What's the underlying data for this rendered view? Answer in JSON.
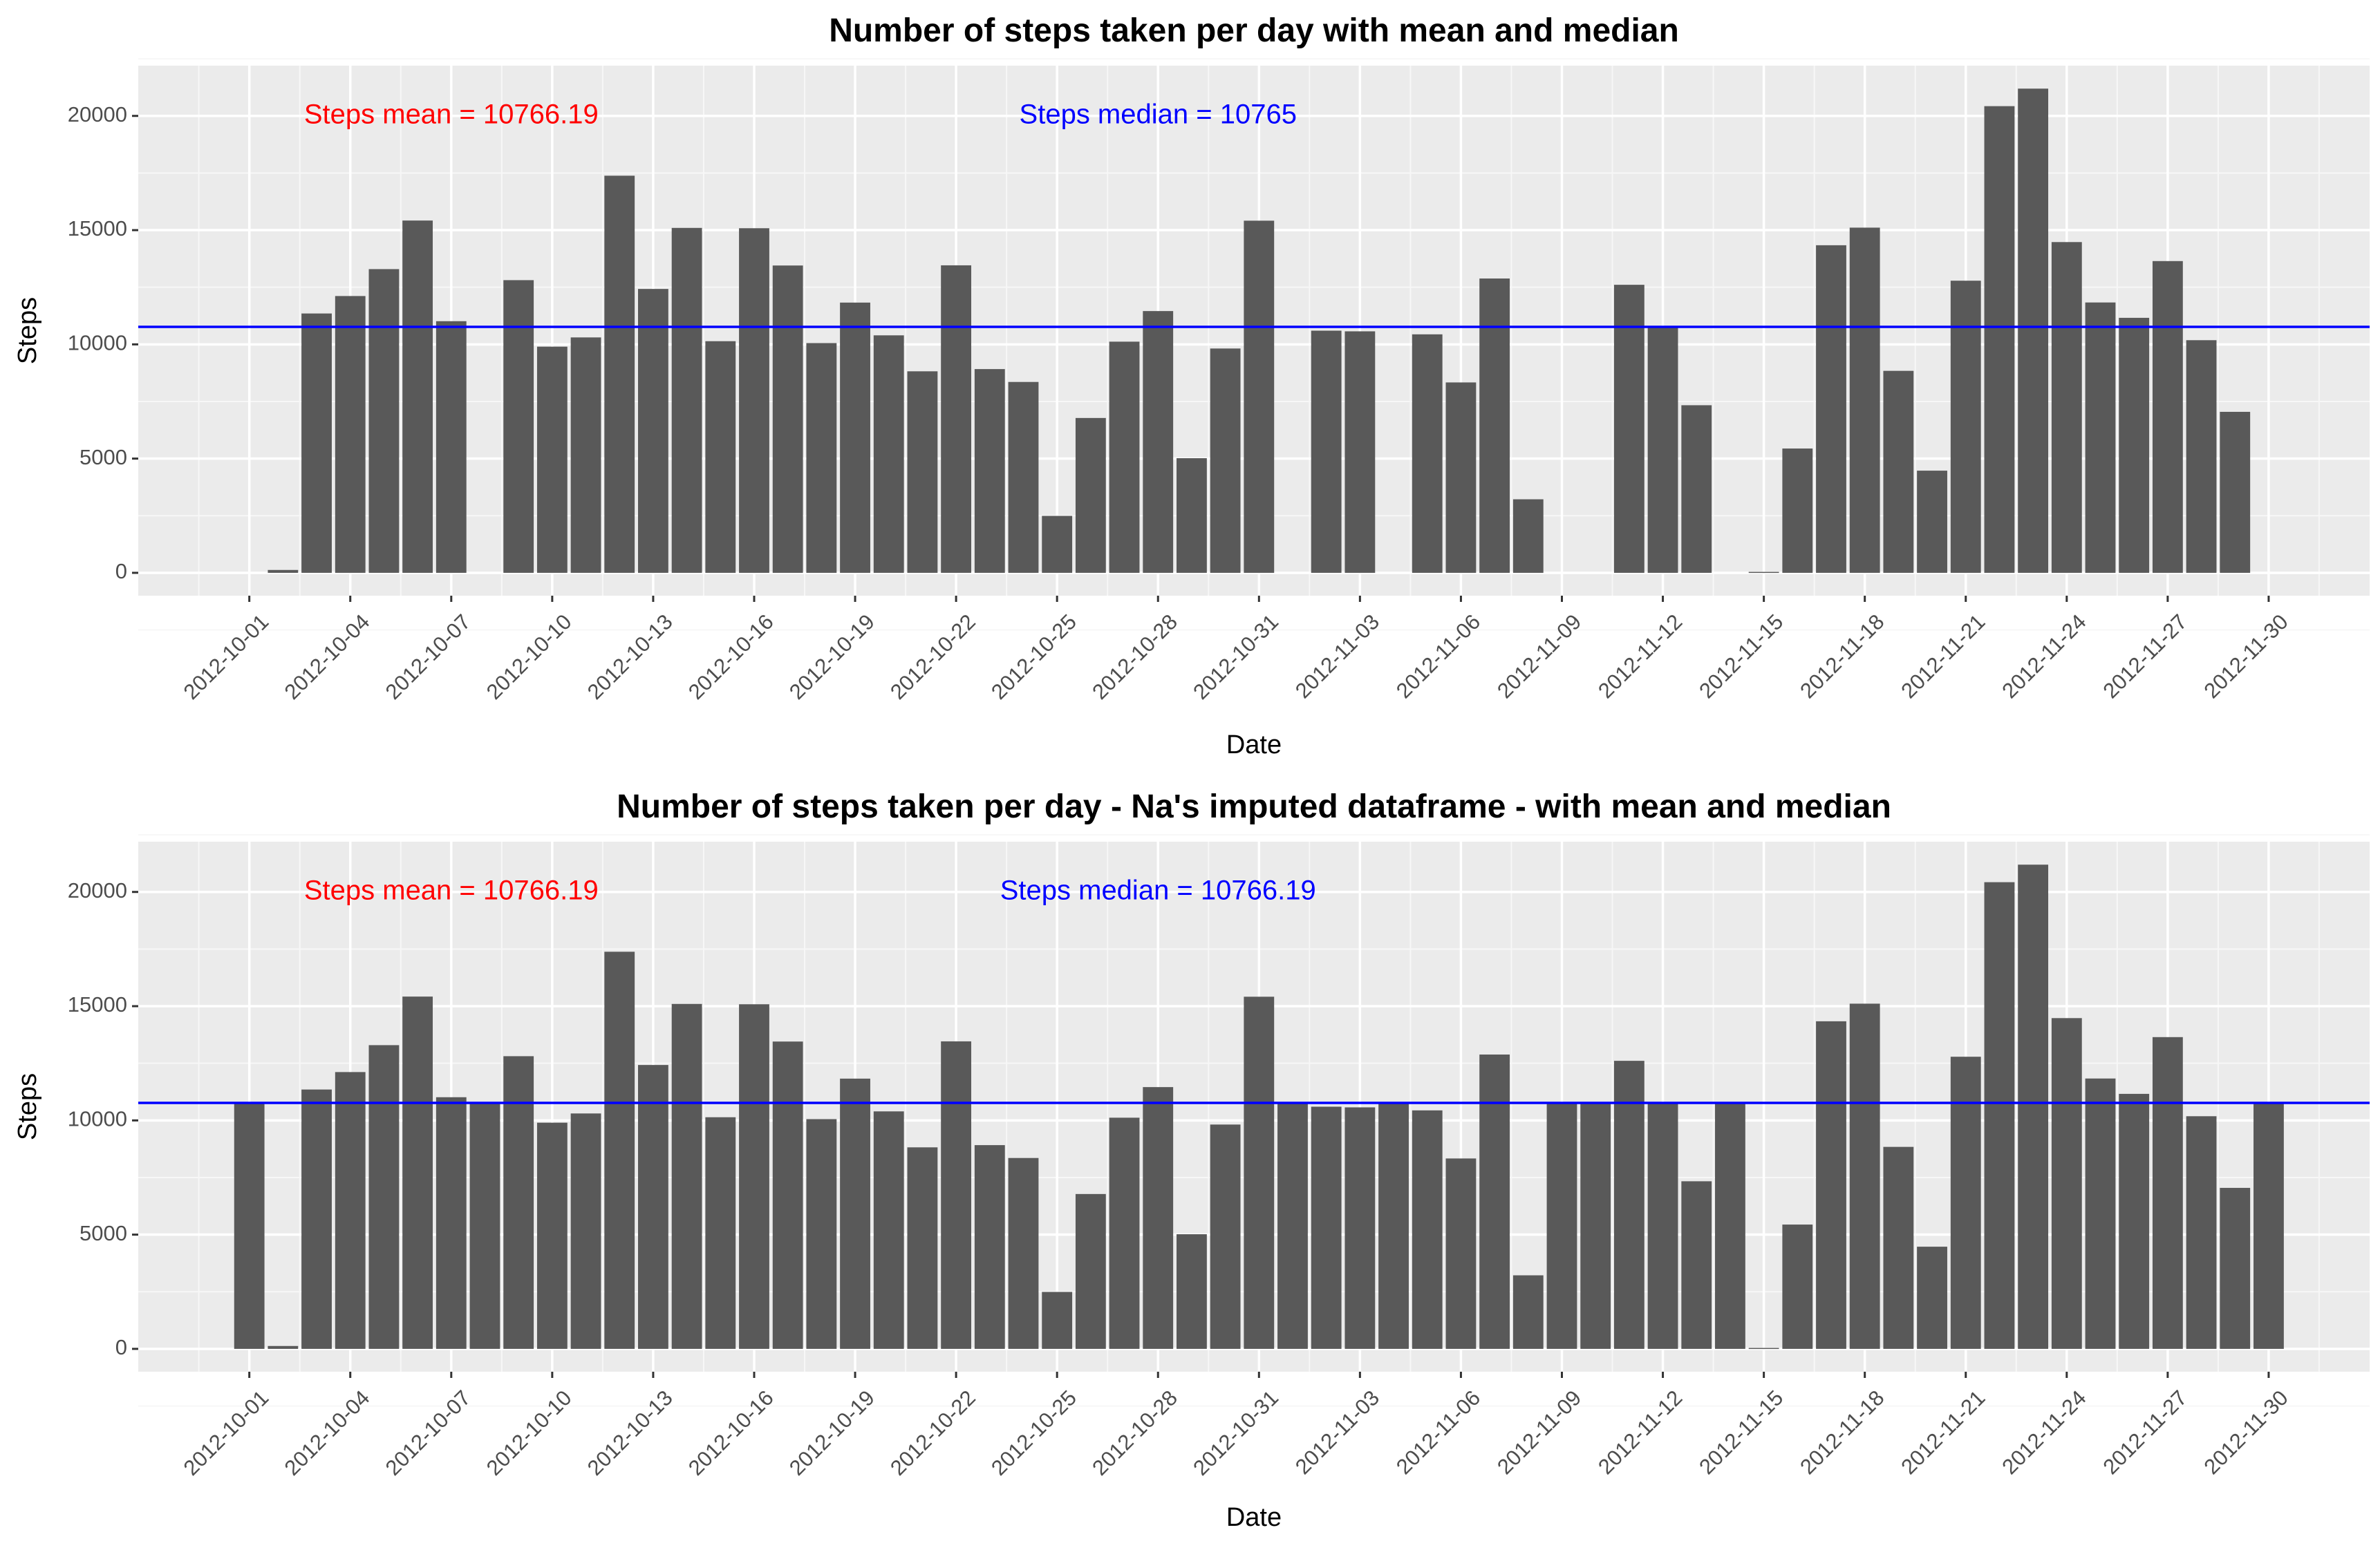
{
  "chart_data": [
    {
      "type": "bar",
      "title": "Number of steps taken per day with mean and median",
      "xlabel": "Date",
      "ylabel": "Steps",
      "x": [
        "2012-10-01",
        "2012-10-02",
        "2012-10-03",
        "2012-10-04",
        "2012-10-05",
        "2012-10-06",
        "2012-10-07",
        "2012-10-08",
        "2012-10-09",
        "2012-10-10",
        "2012-10-11",
        "2012-10-12",
        "2012-10-13",
        "2012-10-14",
        "2012-10-15",
        "2012-10-16",
        "2012-10-17",
        "2012-10-18",
        "2012-10-19",
        "2012-10-20",
        "2012-10-21",
        "2012-10-22",
        "2012-10-23",
        "2012-10-24",
        "2012-10-25",
        "2012-10-26",
        "2012-10-27",
        "2012-10-28",
        "2012-10-29",
        "2012-10-30",
        "2012-10-31",
        "2012-11-01",
        "2012-11-02",
        "2012-11-03",
        "2012-11-04",
        "2012-11-05",
        "2012-11-06",
        "2012-11-07",
        "2012-11-08",
        "2012-11-09",
        "2012-11-10",
        "2012-11-11",
        "2012-11-12",
        "2012-11-13",
        "2012-11-14",
        "2012-11-15",
        "2012-11-16",
        "2012-11-17",
        "2012-11-18",
        "2012-11-19",
        "2012-11-20",
        "2012-11-21",
        "2012-11-22",
        "2012-11-23",
        "2012-11-24",
        "2012-11-25",
        "2012-11-26",
        "2012-11-27",
        "2012-11-28",
        "2012-11-29",
        "2012-11-30"
      ],
      "values": [
        null,
        126,
        11352,
        12116,
        13294,
        15420,
        11015,
        null,
        12811,
        9900,
        10304,
        17382,
        12426,
        15098,
        10139,
        15084,
        13452,
        10056,
        11829,
        10395,
        8821,
        13460,
        8918,
        8355,
        2492,
        6778,
        10119,
        11458,
        5018,
        9819,
        15414,
        null,
        10600,
        10571,
        null,
        10439,
        8334,
        12883,
        3219,
        null,
        null,
        12608,
        10765,
        7336,
        null,
        41,
        5441,
        14339,
        15110,
        8841,
        4472,
        12787,
        20427,
        21194,
        14478,
        11834,
        11162,
        13646,
        10183,
        7047,
        null
      ],
      "xticks": [
        "2012-10-01",
        "2012-10-04",
        "2012-10-07",
        "2012-10-10",
        "2012-10-13",
        "2012-10-16",
        "2012-10-19",
        "2012-10-22",
        "2012-10-25",
        "2012-10-28",
        "2012-10-31",
        "2012-11-03",
        "2012-11-06",
        "2012-11-09",
        "2012-11-12",
        "2012-11-15",
        "2012-11-18",
        "2012-11-21",
        "2012-11-24",
        "2012-11-27",
        "2012-11-30"
      ],
      "yticks": [
        0,
        5000,
        10000,
        15000,
        20000
      ],
      "ylim": [
        -1000,
        22200
      ],
      "hline": 10766.19,
      "hline_color": "#0000ff",
      "bar_color": "#595959",
      "annotations": [
        {
          "text": "Steps mean = 10766.19",
          "color": "#ff0000",
          "x": "2012-10-07",
          "y": 20000
        },
        {
          "text": "Steps median = 10765",
          "color": "#0000ff",
          "x": "2012-10-28",
          "y": 20000
        }
      ],
      "grid": true
    },
    {
      "type": "bar",
      "title": "Number of steps taken per day - Na's imputed dataframe - with mean and median",
      "xlabel": "Date",
      "ylabel": "Steps",
      "x": [
        "2012-10-01",
        "2012-10-02",
        "2012-10-03",
        "2012-10-04",
        "2012-10-05",
        "2012-10-06",
        "2012-10-07",
        "2012-10-08",
        "2012-10-09",
        "2012-10-10",
        "2012-10-11",
        "2012-10-12",
        "2012-10-13",
        "2012-10-14",
        "2012-10-15",
        "2012-10-16",
        "2012-10-17",
        "2012-10-18",
        "2012-10-19",
        "2012-10-20",
        "2012-10-21",
        "2012-10-22",
        "2012-10-23",
        "2012-10-24",
        "2012-10-25",
        "2012-10-26",
        "2012-10-27",
        "2012-10-28",
        "2012-10-29",
        "2012-10-30",
        "2012-10-31",
        "2012-11-01",
        "2012-11-02",
        "2012-11-03",
        "2012-11-04",
        "2012-11-05",
        "2012-11-06",
        "2012-11-07",
        "2012-11-08",
        "2012-11-09",
        "2012-11-10",
        "2012-11-11",
        "2012-11-12",
        "2012-11-13",
        "2012-11-14",
        "2012-11-15",
        "2012-11-16",
        "2012-11-17",
        "2012-11-18",
        "2012-11-19",
        "2012-11-20",
        "2012-11-21",
        "2012-11-22",
        "2012-11-23",
        "2012-11-24",
        "2012-11-25",
        "2012-11-26",
        "2012-11-27",
        "2012-11-28",
        "2012-11-29",
        "2012-11-30"
      ],
      "values": [
        10766.19,
        126,
        11352,
        12116,
        13294,
        15420,
        11015,
        10766.19,
        12811,
        9900,
        10304,
        17382,
        12426,
        15098,
        10139,
        15084,
        13452,
        10056,
        11829,
        10395,
        8821,
        13460,
        8918,
        8355,
        2492,
        6778,
        10119,
        11458,
        5018,
        9819,
        15414,
        10766.19,
        10600,
        10571,
        10766.19,
        10439,
        8334,
        12883,
        3219,
        10766.19,
        10766.19,
        12608,
        10765,
        7336,
        10766.19,
        41,
        5441,
        14339,
        15110,
        8841,
        4472,
        12787,
        20427,
        21194,
        14478,
        11834,
        11162,
        13646,
        10183,
        7047,
        10766.19
      ],
      "xticks": [
        "2012-10-01",
        "2012-10-04",
        "2012-10-07",
        "2012-10-10",
        "2012-10-13",
        "2012-10-16",
        "2012-10-19",
        "2012-10-22",
        "2012-10-25",
        "2012-10-28",
        "2012-10-31",
        "2012-11-03",
        "2012-11-06",
        "2012-11-09",
        "2012-11-12",
        "2012-11-15",
        "2012-11-18",
        "2012-11-21",
        "2012-11-24",
        "2012-11-27",
        "2012-11-30"
      ],
      "yticks": [
        0,
        5000,
        10000,
        15000,
        20000
      ],
      "ylim": [
        -1000,
        22200
      ],
      "hline": 10766.19,
      "hline_color": "#0000ff",
      "bar_color": "#595959",
      "annotations": [
        {
          "text": "Steps mean = 10766.19",
          "color": "#ff0000",
          "x": "2012-10-07",
          "y": 20000
        },
        {
          "text": "Steps median = 10766.19",
          "color": "#0000ff",
          "x": "2012-10-28",
          "y": 20000
        }
      ],
      "grid": true
    }
  ]
}
